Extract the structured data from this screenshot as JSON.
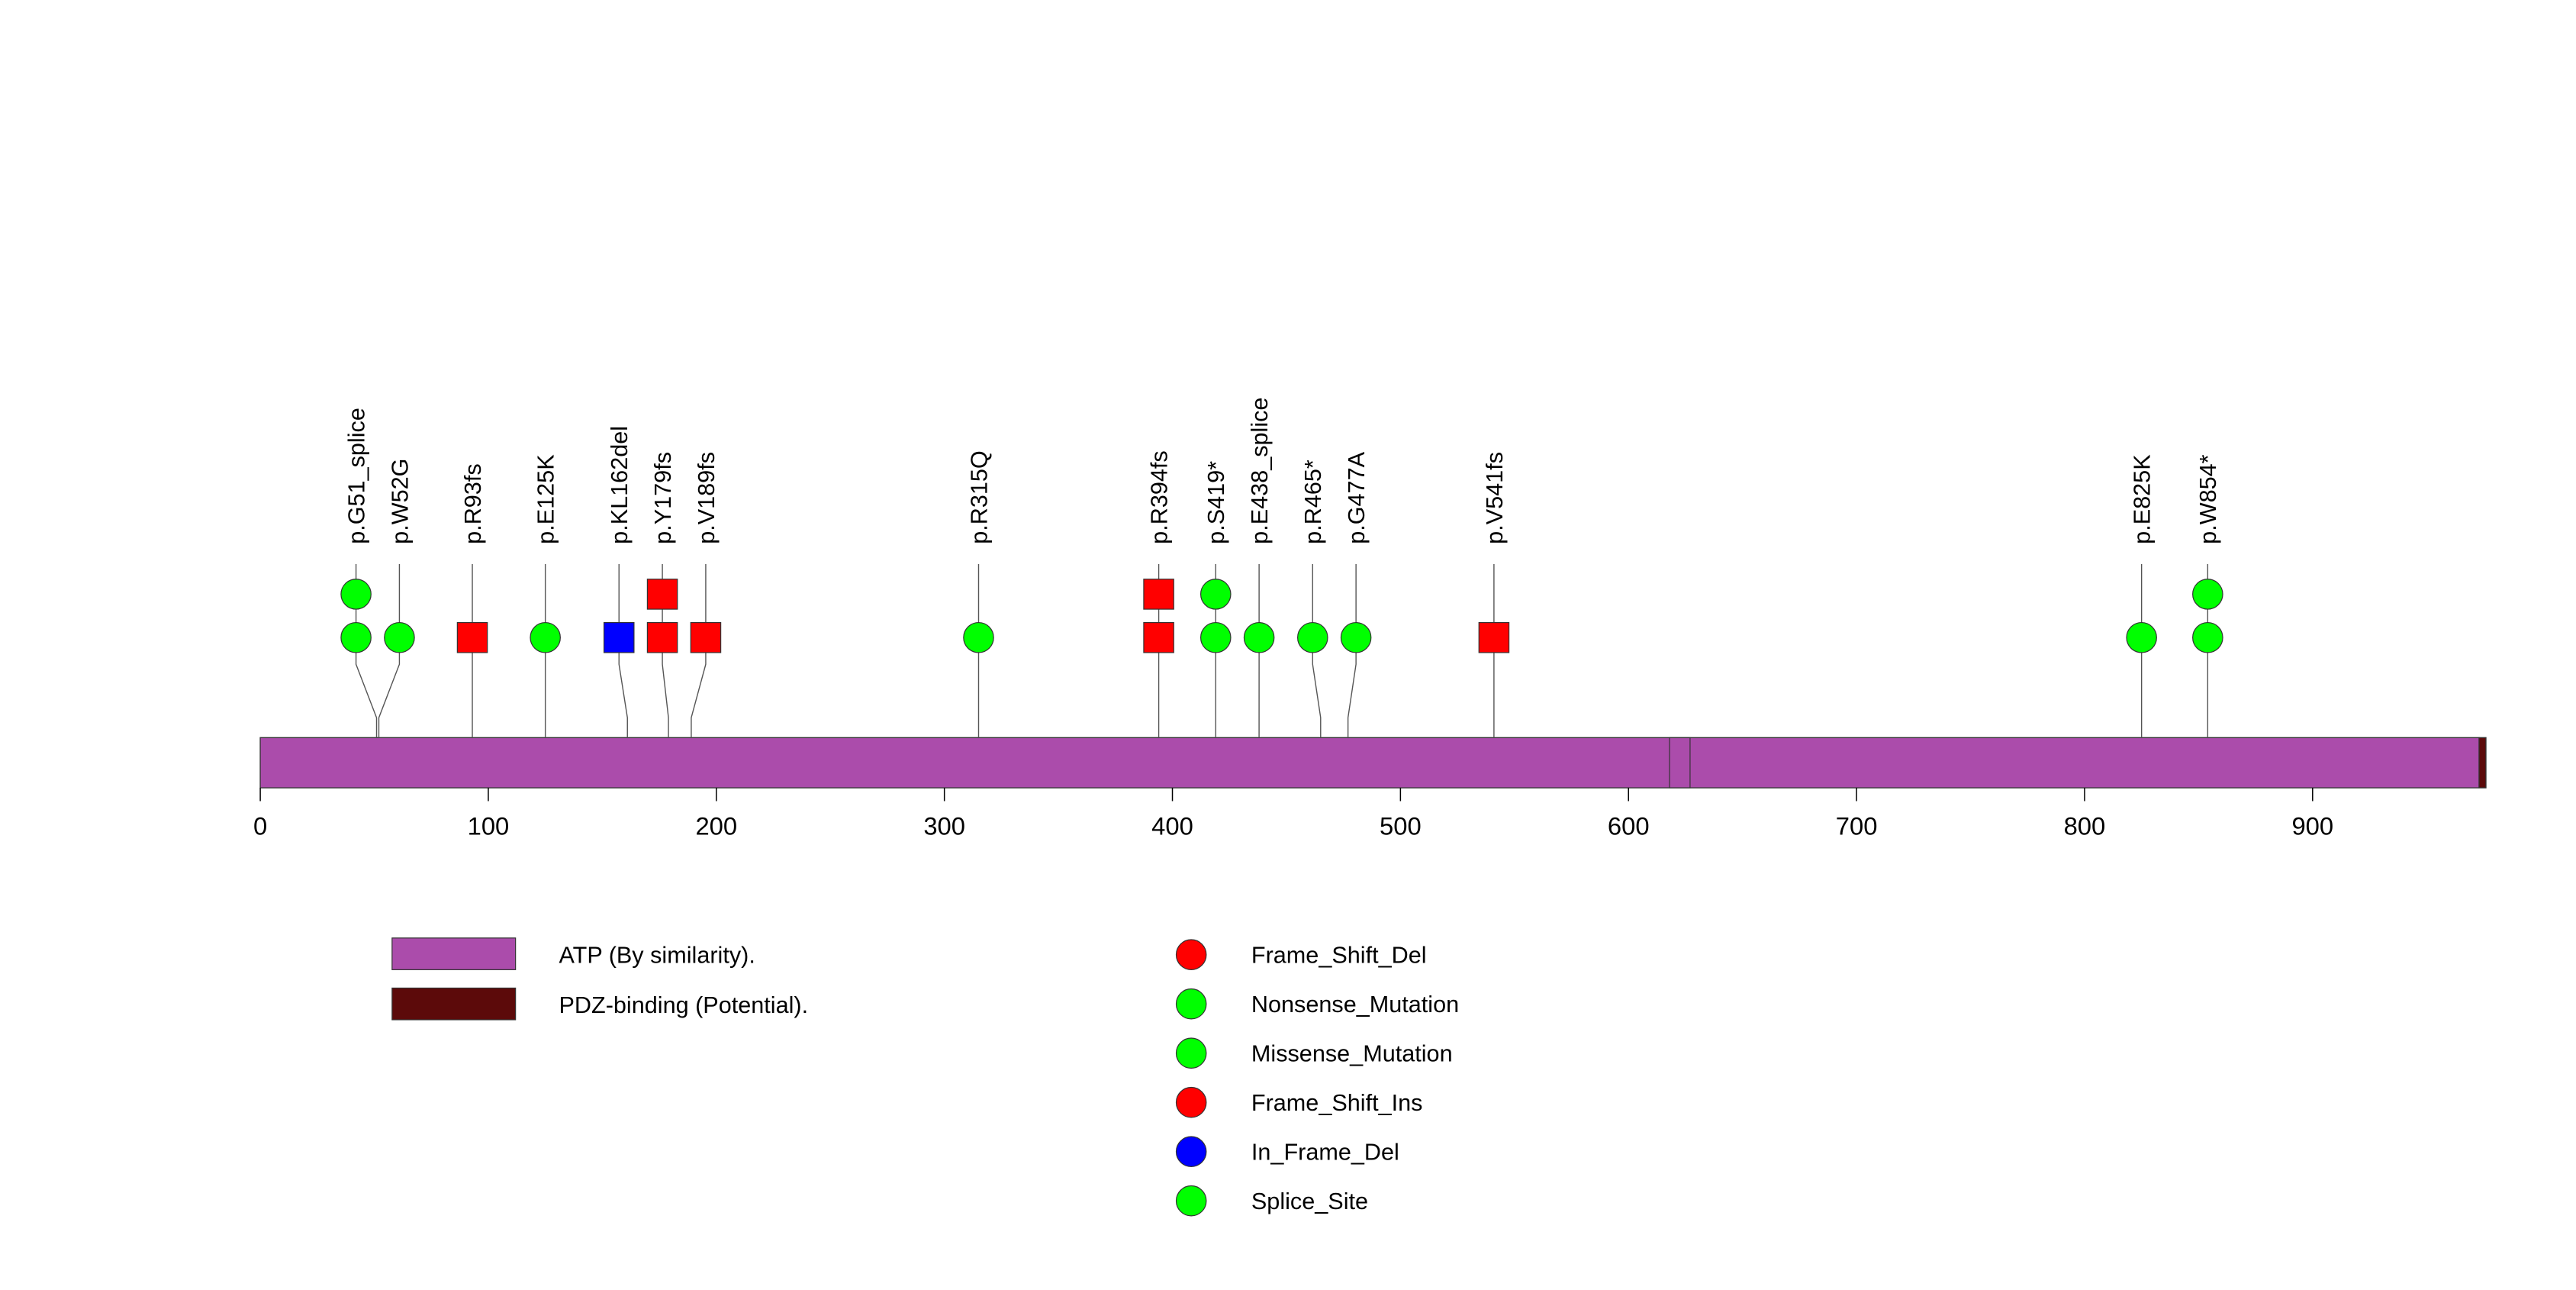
{
  "chart_data": {
    "type": "lollipop",
    "protein_length": 976,
    "x_ticks": [
      0,
      100,
      200,
      300,
      400,
      500,
      600,
      700,
      800,
      900
    ],
    "domains": [
      {
        "name": "ATP (By similarity).",
        "start": 0,
        "end": 973,
        "color": "#AB4CAB"
      },
      {
        "name": "PDZ-binding (Potential).",
        "start": 973,
        "end": 976,
        "color": "#5C0A0A"
      }
    ],
    "small_features": [
      {
        "start": 618,
        "end": 627,
        "color": "#AB4CAB"
      }
    ],
    "mutations": [
      {
        "label": "p.G51_splice",
        "position": 51,
        "markers": [
          {
            "shape": "circle",
            "color": "#00FF00"
          },
          {
            "shape": "circle",
            "color": "#00FF00"
          }
        ]
      },
      {
        "label": "p.W52G",
        "position": 52,
        "markers": [
          {
            "shape": "circle",
            "color": "#00FF00"
          }
        ]
      },
      {
        "label": "p.R93fs",
        "position": 93,
        "markers": [
          {
            "shape": "square",
            "color": "#FF0000"
          }
        ]
      },
      {
        "label": "p.E125K",
        "position": 125,
        "markers": [
          {
            "shape": "circle",
            "color": "#00FF00"
          }
        ]
      },
      {
        "label": "p.KL162del",
        "position": 161,
        "markers": [
          {
            "shape": "square",
            "color": "#0000FF"
          }
        ]
      },
      {
        "label": "p.Y179fs",
        "position": 179,
        "markers": [
          {
            "shape": "square",
            "color": "#FF0000"
          },
          {
            "shape": "square",
            "color": "#FF0000"
          }
        ]
      },
      {
        "label": "p.V189fs",
        "position": 189,
        "markers": [
          {
            "shape": "square",
            "color": "#FF0000"
          }
        ]
      },
      {
        "label": "p.R315Q",
        "position": 315,
        "markers": [
          {
            "shape": "circle",
            "color": "#00FF00"
          }
        ]
      },
      {
        "label": "p.R394fs",
        "position": 394,
        "markers": [
          {
            "shape": "square",
            "color": "#FF0000"
          },
          {
            "shape": "square",
            "color": "#FF0000"
          }
        ]
      },
      {
        "label": "p.S419*",
        "position": 419,
        "markers": [
          {
            "shape": "circle",
            "color": "#00FF00"
          },
          {
            "shape": "circle",
            "color": "#00FF00"
          }
        ]
      },
      {
        "label": "p.E438_splice",
        "position": 438,
        "markers": [
          {
            "shape": "circle",
            "color": "#00FF00"
          }
        ]
      },
      {
        "label": "p.R465*",
        "position": 465,
        "markers": [
          {
            "shape": "circle",
            "color": "#00FF00"
          }
        ]
      },
      {
        "label": "p.G477A",
        "position": 477,
        "markers": [
          {
            "shape": "circle",
            "color": "#00FF00"
          }
        ]
      },
      {
        "label": "p.V541fs",
        "position": 541,
        "markers": [
          {
            "shape": "square",
            "color": "#FF0000"
          }
        ]
      },
      {
        "label": "p.E825K",
        "position": 825,
        "markers": [
          {
            "shape": "circle",
            "color": "#00FF00"
          }
        ]
      },
      {
        "label": "p.W854*",
        "position": 854,
        "markers": [
          {
            "shape": "circle",
            "color": "#00FF00"
          },
          {
            "shape": "circle",
            "color": "#00FF00"
          }
        ]
      }
    ],
    "legend_domains": [
      {
        "label": "ATP (By similarity).",
        "color": "#AB4CAB"
      },
      {
        "label": "PDZ-binding (Potential).",
        "color": "#5C0A0A"
      }
    ],
    "legend_mutations": [
      {
        "label": "Frame_Shift_Del",
        "color": "#FF0000"
      },
      {
        "label": "Nonsense_Mutation",
        "color": "#00FF00"
      },
      {
        "label": "Missense_Mutation",
        "color": "#00FF00"
      },
      {
        "label": "Frame_Shift_Ins",
        "color": "#FF0000"
      },
      {
        "label": "In_Frame_Del",
        "color": "#0000FF"
      },
      {
        "label": "Splice_Site",
        "color": "#00FF00"
      }
    ]
  }
}
